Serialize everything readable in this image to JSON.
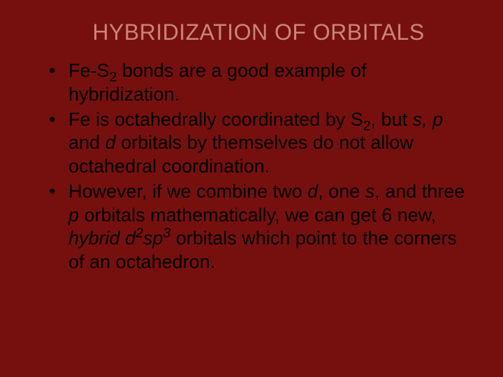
{
  "slide": {
    "background_color": "#76100e",
    "title_color": "#ca857b",
    "body_color": "#000000",
    "title_fontsize": 32,
    "body_fontsize": 27,
    "title": "HYBRIDIZATION OF ORBITALS",
    "bullets": [
      {
        "segments": [
          {
            "t": "Fe-S"
          },
          {
            "t": "2",
            "sub": true
          },
          {
            "t": " bonds are a good example of hybridization."
          }
        ]
      },
      {
        "segments": [
          {
            "t": "Fe is octahedrally coordinated by S"
          },
          {
            "t": "2",
            "sub": true
          },
          {
            "t": ", but "
          },
          {
            "t": "s, p",
            "ital": true
          },
          {
            "t": " and "
          },
          {
            "t": "d",
            "ital": true
          },
          {
            "t": " orbitals by themselves do not allow octahedral coordination."
          }
        ]
      },
      {
        "segments": [
          {
            "t": "However, if we combine two "
          },
          {
            "t": "d",
            "ital": true
          },
          {
            "t": ", one "
          },
          {
            "t": "s",
            "ital": true
          },
          {
            "t": ", and three "
          },
          {
            "t": "p",
            "ital": true
          },
          {
            "t": " orbitals mathematically, we can get 6 new, "
          },
          {
            "t": "hybrid d",
            "ital": true
          },
          {
            "t": "2",
            "ital": true,
            "sup": true
          },
          {
            "t": "sp",
            "ital": true
          },
          {
            "t": "3",
            "ital": true,
            "sup": true
          },
          {
            "t": " orbitals which point to the corners of an octahedron."
          }
        ]
      }
    ]
  }
}
